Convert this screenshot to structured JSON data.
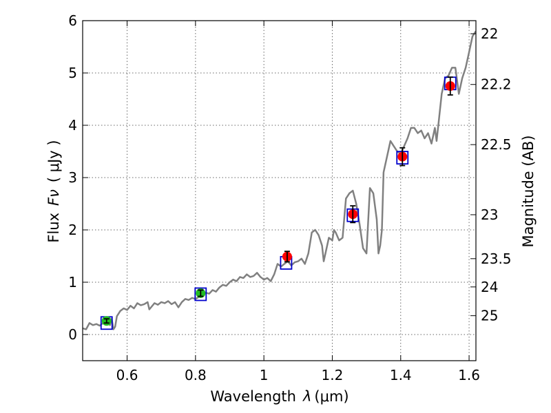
{
  "chart_data": {
    "type": "line",
    "title": "",
    "xlabel_prefix": "Wavelength",
    "xlabel_symbol": "λ",
    "xlabel_unit": "(μm)",
    "ylabel_prefix": "Flux",
    "ylabel_symbol": "Fν",
    "ylabel_unit": "( μJy )",
    "ylabel_right": "Magnitude (AB)",
    "xlim": [
      0.47,
      1.62
    ],
    "ylim": [
      -0.5,
      6.0
    ],
    "grid": true,
    "x_ticks": [
      {
        "value": 0.6,
        "label": "0.6"
      },
      {
        "value": 0.8,
        "label": "0.8"
      },
      {
        "value": 1.0,
        "label": "1"
      },
      {
        "value": 1.2,
        "label": "1.2"
      },
      {
        "value": 1.4,
        "label": "1.4"
      },
      {
        "value": 1.6,
        "label": "1.6"
      }
    ],
    "y_ticks": [
      {
        "value": 0,
        "label": "0"
      },
      {
        "value": 1,
        "label": "1"
      },
      {
        "value": 2,
        "label": "2"
      },
      {
        "value": 3,
        "label": "3"
      },
      {
        "value": 4,
        "label": "4"
      },
      {
        "value": 5,
        "label": "5"
      },
      {
        "value": 6,
        "label": "6"
      }
    ],
    "mag_ticks": [
      {
        "flux": 5.75,
        "label": "22"
      },
      {
        "flux": 4.78,
        "label": "22.2"
      },
      {
        "flux": 3.63,
        "label": "22.5"
      },
      {
        "flux": 2.29,
        "label": "23"
      },
      {
        "flux": 1.45,
        "label": "23.5"
      },
      {
        "flux": 0.91,
        "label": "24"
      },
      {
        "flux": 0.36,
        "label": "25"
      }
    ],
    "colors": {
      "spectrum": "#808080",
      "model_box": "#0000cc",
      "optical_point": "#22bb22",
      "nir_point": "#ff0000",
      "errorbar": "#000000"
    },
    "series": [
      {
        "name": "template-spectrum",
        "kind": "line",
        "points": [
          [
            0.47,
            0.12
          ],
          [
            0.48,
            0.1
          ],
          [
            0.49,
            0.22
          ],
          [
            0.5,
            0.18
          ],
          [
            0.51,
            0.2
          ],
          [
            0.52,
            0.17
          ],
          [
            0.53,
            0.22
          ],
          [
            0.54,
            0.25
          ],
          [
            0.55,
            0.18
          ],
          [
            0.555,
            0.3
          ],
          [
            0.56,
            0.1
          ],
          [
            0.565,
            0.15
          ],
          [
            0.57,
            0.35
          ],
          [
            0.58,
            0.45
          ],
          [
            0.59,
            0.5
          ],
          [
            0.6,
            0.47
          ],
          [
            0.61,
            0.55
          ],
          [
            0.62,
            0.5
          ],
          [
            0.63,
            0.6
          ],
          [
            0.64,
            0.56
          ],
          [
            0.65,
            0.58
          ],
          [
            0.66,
            0.62
          ],
          [
            0.665,
            0.48
          ],
          [
            0.67,
            0.52
          ],
          [
            0.68,
            0.6
          ],
          [
            0.69,
            0.57
          ],
          [
            0.7,
            0.62
          ],
          [
            0.71,
            0.6
          ],
          [
            0.72,
            0.64
          ],
          [
            0.73,
            0.58
          ],
          [
            0.74,
            0.62
          ],
          [
            0.75,
            0.52
          ],
          [
            0.76,
            0.62
          ],
          [
            0.77,
            0.68
          ],
          [
            0.78,
            0.66
          ],
          [
            0.79,
            0.7
          ],
          [
            0.8,
            0.68
          ],
          [
            0.81,
            0.72
          ],
          [
            0.82,
            0.75
          ],
          [
            0.83,
            0.8
          ],
          [
            0.84,
            0.78
          ],
          [
            0.85,
            0.85
          ],
          [
            0.86,
            0.82
          ],
          [
            0.87,
            0.9
          ],
          [
            0.88,
            0.95
          ],
          [
            0.89,
            0.93
          ],
          [
            0.9,
            1.0
          ],
          [
            0.91,
            1.05
          ],
          [
            0.92,
            1.02
          ],
          [
            0.93,
            1.1
          ],
          [
            0.94,
            1.08
          ],
          [
            0.95,
            1.15
          ],
          [
            0.96,
            1.1
          ],
          [
            0.97,
            1.12
          ],
          [
            0.98,
            1.18
          ],
          [
            0.99,
            1.1
          ],
          [
            1.0,
            1.05
          ],
          [
            1.01,
            1.08
          ],
          [
            1.02,
            1.02
          ],
          [
            1.03,
            1.15
          ],
          [
            1.04,
            1.35
          ],
          [
            1.05,
            1.3
          ],
          [
            1.06,
            1.35
          ],
          [
            1.07,
            1.4
          ],
          [
            1.08,
            1.32
          ],
          [
            1.09,
            1.38
          ],
          [
            1.1,
            1.4
          ],
          [
            1.11,
            1.45
          ],
          [
            1.12,
            1.35
          ],
          [
            1.13,
            1.55
          ],
          [
            1.14,
            1.95
          ],
          [
            1.15,
            2.0
          ],
          [
            1.16,
            1.9
          ],
          [
            1.17,
            1.7
          ],
          [
            1.175,
            1.4
          ],
          [
            1.18,
            1.55
          ],
          [
            1.19,
            1.85
          ],
          [
            1.2,
            1.8
          ],
          [
            1.205,
            2.0
          ],
          [
            1.21,
            1.95
          ],
          [
            1.22,
            1.8
          ],
          [
            1.23,
            1.85
          ],
          [
            1.24,
            2.6
          ],
          [
            1.25,
            2.7
          ],
          [
            1.26,
            2.75
          ],
          [
            1.27,
            2.5
          ],
          [
            1.28,
            2.1
          ],
          [
            1.29,
            1.65
          ],
          [
            1.3,
            1.55
          ],
          [
            1.31,
            2.8
          ],
          [
            1.32,
            2.7
          ],
          [
            1.33,
            2.2
          ],
          [
            1.335,
            1.55
          ],
          [
            1.34,
            1.7
          ],
          [
            1.345,
            2.0
          ],
          [
            1.35,
            3.1
          ],
          [
            1.36,
            3.4
          ],
          [
            1.37,
            3.7
          ],
          [
            1.38,
            3.6
          ],
          [
            1.39,
            3.5
          ],
          [
            1.4,
            3.45
          ],
          [
            1.41,
            3.6
          ],
          [
            1.42,
            3.75
          ],
          [
            1.43,
            3.95
          ],
          [
            1.44,
            3.95
          ],
          [
            1.45,
            3.85
          ],
          [
            1.46,
            3.9
          ],
          [
            1.47,
            3.75
          ],
          [
            1.48,
            3.85
          ],
          [
            1.49,
            3.65
          ],
          [
            1.5,
            3.95
          ],
          [
            1.505,
            3.7
          ],
          [
            1.51,
            4.0
          ],
          [
            1.52,
            4.6
          ],
          [
            1.53,
            4.9
          ],
          [
            1.54,
            4.95
          ],
          [
            1.55,
            5.1
          ],
          [
            1.56,
            5.1
          ],
          [
            1.57,
            4.6
          ],
          [
            1.58,
            4.9
          ],
          [
            1.59,
            5.1
          ],
          [
            1.6,
            5.4
          ],
          [
            1.61,
            5.7
          ],
          [
            1.62,
            5.8
          ]
        ]
      },
      {
        "name": "model-photometry",
        "kind": "box",
        "x": [
          0.54,
          0.815,
          1.065,
          1.26,
          1.405,
          1.545
        ],
        "y": [
          0.22,
          0.77,
          1.37,
          2.28,
          3.38,
          4.8
        ]
      },
      {
        "name": "optical-detections",
        "kind": "circle",
        "x": [
          0.54,
          0.815
        ],
        "y": [
          0.26,
          0.79
        ],
        "err": [
          0.04,
          0.06
        ]
      },
      {
        "name": "nir-detections",
        "kind": "circle",
        "x": [
          1.068,
          1.26,
          1.405,
          1.545
        ],
        "y": [
          1.49,
          2.3,
          3.4,
          4.75
        ],
        "err": [
          0.1,
          0.16,
          0.17,
          0.17
        ]
      }
    ]
  }
}
